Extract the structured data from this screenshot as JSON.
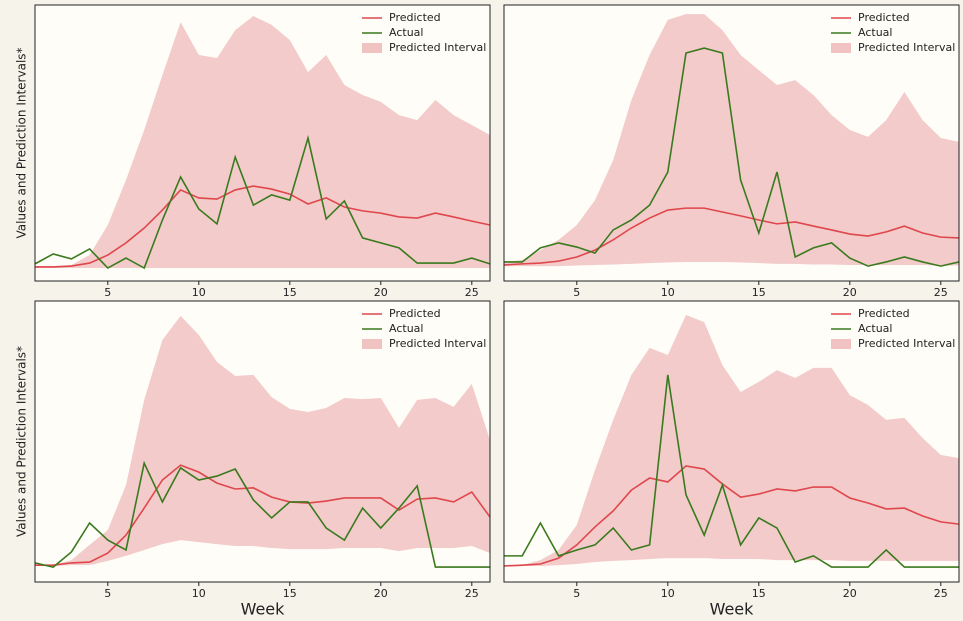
{
  "chart_data": [
    {
      "type": "line",
      "ylabel": "Values and Prediction Intervals*",
      "x": [
        1,
        2,
        3,
        4,
        5,
        6,
        7,
        8,
        9,
        10,
        11,
        12,
        13,
        14,
        15,
        16,
        17,
        18,
        19,
        20,
        21,
        22,
        23,
        24,
        25,
        26
      ],
      "xlim": [
        1,
        26
      ],
      "xticks": [
        5,
        10,
        15,
        20,
        25
      ],
      "ylim": [
        0,
        100
      ],
      "series": [
        {
          "name": "Predicted",
          "color": "#e0474c",
          "values": [
            5.1,
            5.1,
            5.4,
            6.5,
            9.4,
            13.8,
            19.2,
            25.7,
            33,
            30.1,
            29.7,
            33,
            34.4,
            33.3,
            31.5,
            27.9,
            30.1,
            26.8,
            25.4,
            24.6,
            23.2,
            22.8,
            24.6,
            23.2,
            21.7,
            20.3
          ]
        },
        {
          "name": "Actual",
          "color": "#3a7a1e",
          "values": [
            6.2,
            9.8,
            8,
            11.6,
            4.7,
            8.3,
            4.7,
            22.1,
            37.7,
            26.1,
            20.7,
            44.9,
            27.5,
            31.2,
            29.3,
            51.8,
            22.5,
            29,
            15.6,
            13.8,
            12,
            6.5,
            6.5,
            6.5,
            8.3,
            6.2
          ]
        }
      ],
      "interval": {
        "name": "Predicted Interval",
        "color": "#f0c2c2",
        "lower": [
          4.7,
          4.7,
          4.7,
          4.7,
          4.7,
          4.7,
          4.7,
          4.7,
          4.7,
          4.7,
          4.7,
          4.7,
          4.7,
          4.7,
          4.7,
          4.7,
          4.7,
          4.7,
          4.7,
          4.7,
          4.7,
          4.7,
          4.7,
          4.7,
          4.7,
          4.7
        ],
        "upper": [
          5.4,
          5.4,
          5.8,
          9.4,
          20.3,
          36.6,
          54.7,
          74.6,
          93.8,
          81.9,
          80.8,
          90.9,
          96,
          92.8,
          87.3,
          75.7,
          81.9,
          71,
          67.4,
          64.9,
          60.1,
          58.3,
          65.6,
          60.1,
          56.5,
          52.9
        ]
      }
    },
    {
      "type": "line",
      "x": [
        1,
        2,
        3,
        4,
        5,
        6,
        7,
        8,
        9,
        10,
        11,
        12,
        13,
        14,
        15,
        16,
        17,
        18,
        19,
        20,
        21,
        22,
        23,
        24,
        25,
        26
      ],
      "xlim": [
        1,
        26
      ],
      "xticks": [
        5,
        10,
        15,
        20,
        25
      ],
      "ylim": [
        0,
        100
      ],
      "series": [
        {
          "name": "Predicted",
          "color": "#e0474c",
          "values": [
            5.8,
            6.2,
            6.5,
            7.2,
            8.7,
            11.2,
            14.9,
            19.2,
            22.8,
            25.7,
            26.4,
            26.4,
            25,
            23.6,
            22.1,
            20.7,
            21.4,
            19.9,
            18.5,
            17,
            16.3,
            17.8,
            19.9,
            17.4,
            15.9,
            15.6
          ]
        },
        {
          "name": "Actual",
          "color": "#3a7a1e",
          "values": [
            6.9,
            6.9,
            12,
            13.8,
            12.3,
            10.1,
            18.5,
            22.1,
            27.5,
            39.5,
            82.6,
            84.4,
            82.6,
            36.6,
            17.4,
            39.5,
            8.7,
            12,
            13.8,
            8.3,
            5.4,
            6.9,
            8.7,
            6.9,
            5.4,
            6.9
          ]
        }
      ],
      "interval": {
        "name": "Predicted Interval",
        "color": "#f0c2c2",
        "lower": [
          5.4,
          5.4,
          5.4,
          5.4,
          5.6,
          5.8,
          6,
          6.2,
          6.5,
          6.7,
          6.9,
          6.9,
          6.9,
          6.7,
          6.5,
          6.2,
          6.2,
          6,
          6,
          5.8,
          5.8,
          5.8,
          5.8,
          5.8,
          5.6,
          5.6
        ],
        "upper": [
          6.9,
          7.6,
          11.2,
          14.9,
          20.3,
          29.3,
          43.8,
          65.6,
          81.9,
          94.6,
          96.7,
          96.7,
          90.9,
          81.9,
          76.4,
          71,
          72.8,
          67.4,
          60.1,
          54.7,
          52.2,
          58.3,
          68.5,
          58.3,
          51.8,
          50.4
        ]
      }
    },
    {
      "type": "line",
      "ylabel": "Values and Prediction Intervals*",
      "xlabel": "Week",
      "x": [
        1,
        2,
        3,
        4,
        5,
        6,
        7,
        8,
        9,
        10,
        11,
        12,
        13,
        14,
        15,
        16,
        17,
        18,
        19,
        20,
        21,
        22,
        23,
        24,
        25,
        26
      ],
      "xlim": [
        1,
        26
      ],
      "xticks": [
        5,
        10,
        15,
        20,
        25
      ],
      "ylim": [
        0,
        100
      ],
      "series": [
        {
          "name": "Predicted",
          "color": "#e0474c",
          "values": [
            6,
            6,
            6.8,
            7.1,
            10.3,
            16.7,
            26.3,
            36.3,
            41.6,
            39.1,
            35.2,
            33.1,
            33.5,
            30.2,
            28.5,
            28.1,
            28.8,
            29.9,
            29.9,
            29.9,
            25.6,
            29.5,
            29.9,
            28.5,
            32,
            23.1
          ]
        },
        {
          "name": "Actual",
          "color": "#3a7a1e",
          "values": [
            6.8,
            5.3,
            10.7,
            21,
            14.9,
            11.4,
            42.3,
            28.5,
            40.6,
            36.3,
            37.7,
            40.2,
            29.2,
            22.8,
            28.5,
            28.5,
            19.2,
            14.9,
            26.3,
            19.2,
            26.3,
            34.2,
            5.3,
            5.3,
            5.3,
            5.3
          ]
        }
      ],
      "interval": {
        "name": "Predicted Interval",
        "color": "#f0c2c2",
        "lower": [
          5.7,
          5.7,
          6,
          6,
          7.5,
          9.3,
          11.4,
          13.5,
          14.9,
          14.2,
          13.5,
          12.8,
          12.8,
          12.1,
          11.7,
          11.7,
          11.7,
          12.1,
          12.1,
          12.1,
          11,
          12.1,
          12.1,
          12.1,
          12.8,
          10.3
        ],
        "upper": [
          6,
          6,
          7.8,
          13.2,
          18.5,
          34.5,
          64.8,
          86.1,
          94.7,
          87.9,
          78.3,
          73.3,
          73.7,
          65.8,
          61.6,
          60.5,
          61.9,
          65.5,
          65.1,
          65.5,
          54.8,
          64.8,
          65.5,
          62.3,
          70.5,
          50.5
        ]
      }
    },
    {
      "type": "line",
      "xlabel": "Week",
      "x": [
        1,
        2,
        3,
        4,
        5,
        6,
        7,
        8,
        9,
        10,
        11,
        12,
        13,
        14,
        15,
        16,
        17,
        18,
        19,
        20,
        21,
        22,
        23,
        24,
        25,
        26
      ],
      "xlim": [
        1,
        26
      ],
      "xticks": [
        5,
        10,
        15,
        20,
        25
      ],
      "ylim": [
        0,
        100
      ],
      "series": [
        {
          "name": "Predicted",
          "color": "#e0474c",
          "values": [
            5.7,
            6,
            6.4,
            8.5,
            13.2,
            19.6,
            25.3,
            32.7,
            37,
            35.6,
            41.3,
            40.2,
            34.9,
            30.2,
            31.3,
            33.1,
            32.4,
            33.8,
            33.8,
            29.9,
            28.1,
            26,
            26.3,
            23.5,
            21.4,
            20.6
          ]
        },
        {
          "name": "Actual",
          "color": "#3a7a1e",
          "values": [
            9.3,
            9.3,
            21,
            9.3,
            11.4,
            13.2,
            19.2,
            11.4,
            13.2,
            73.7,
            31,
            16.7,
            34.5,
            13.2,
            22.8,
            19.2,
            7.1,
            9.3,
            5.3,
            5.3,
            5.3,
            11.4,
            5.3,
            5.3,
            5.3,
            5.3
          ]
        }
      ],
      "interval": {
        "name": "Predicted Interval",
        "color": "#f0c2c2",
        "lower": [
          5.7,
          5.7,
          5.7,
          6,
          6.4,
          7.1,
          7.5,
          7.8,
          8.2,
          8.5,
          8.5,
          8.5,
          8.2,
          8.2,
          8.2,
          7.8,
          7.8,
          7.8,
          7.8,
          7.5,
          7.5,
          7.5,
          7.5,
          7.5,
          7.5,
          7.5
        ],
        "upper": [
          5.7,
          6,
          7.8,
          11.4,
          20.3,
          39.9,
          57.7,
          73.7,
          83.3,
          80.8,
          95,
          92.5,
          77.2,
          67.6,
          71.2,
          75.4,
          72.6,
          76.2,
          76.2,
          66.5,
          63,
          57.7,
          58.4,
          51.2,
          45.2,
          44.1
        ]
      }
    }
  ]
}
